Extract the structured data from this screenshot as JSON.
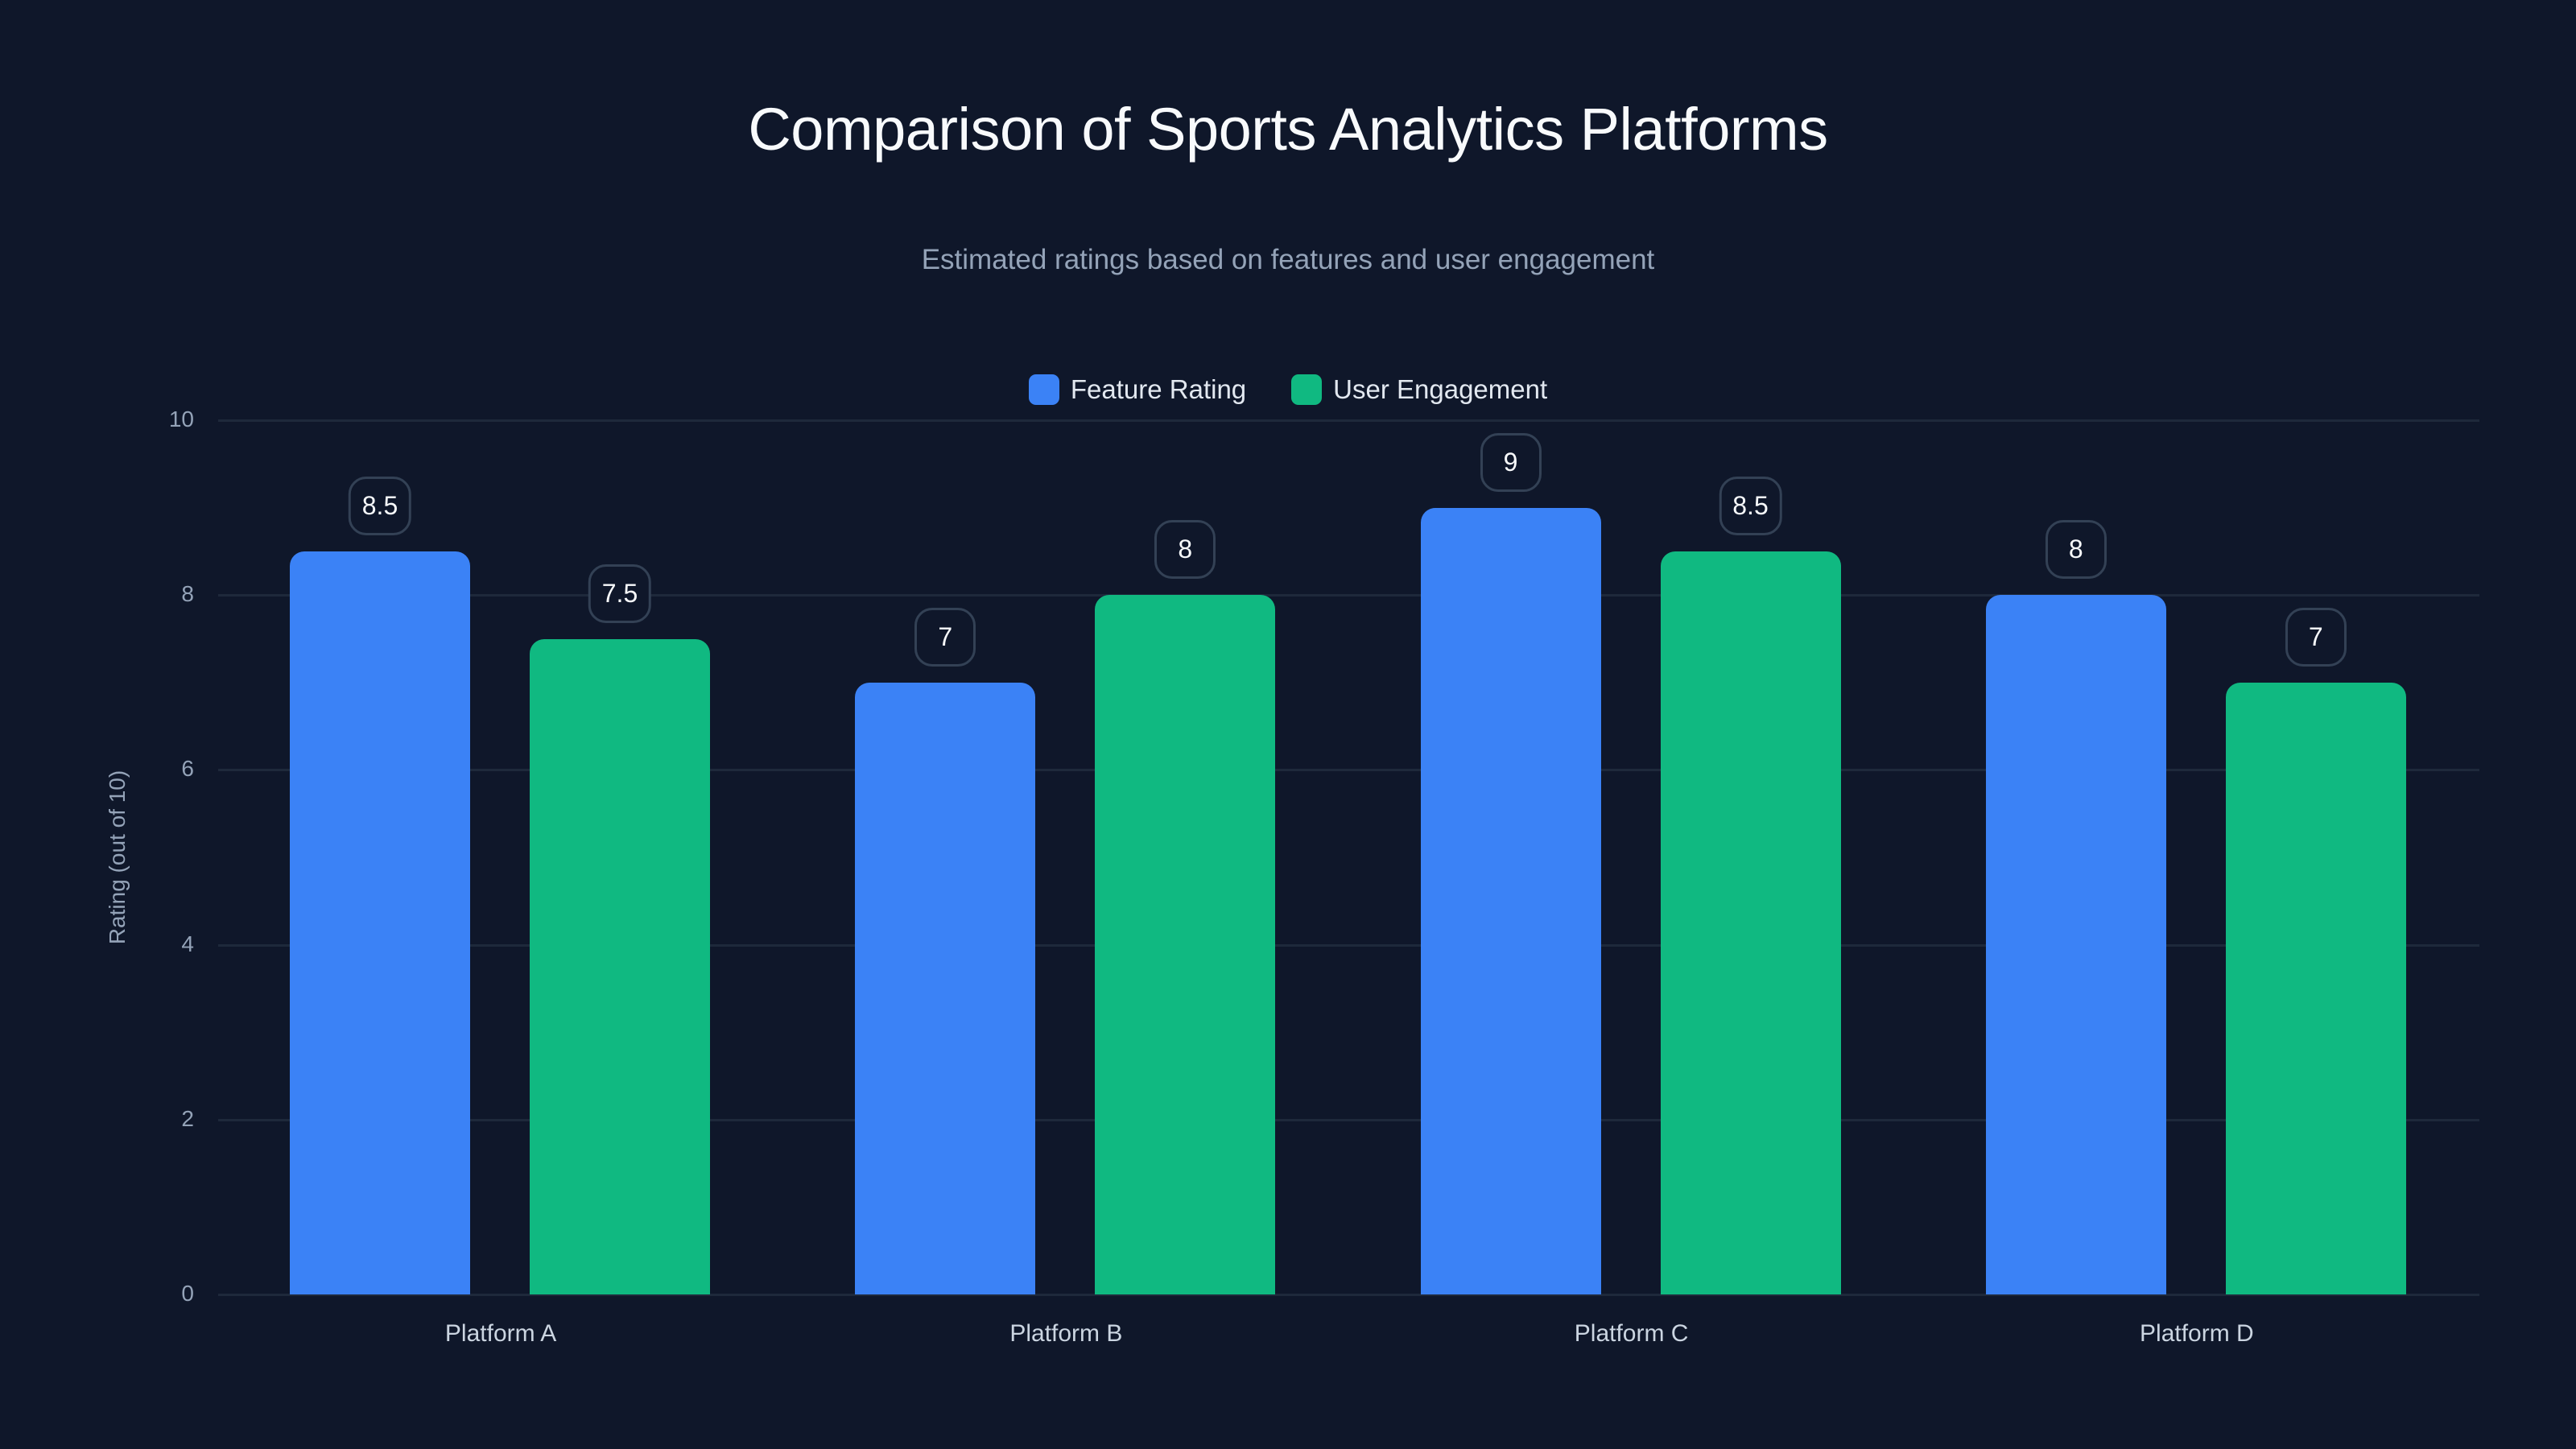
{
  "header": {
    "title": "Comparison of Sports Analytics Platforms",
    "subtitle": "Estimated ratings based on features and user engagement"
  },
  "legend": [
    {
      "label": "Feature Rating",
      "color": "#3b82f6"
    },
    {
      "label": "User Engagement",
      "color": "#10b981"
    }
  ],
  "axes": {
    "ylabel": "Rating (out of 10)",
    "yticks": [
      "0",
      "2",
      "4",
      "6",
      "8",
      "10"
    ],
    "xticks": [
      "Platform A",
      "Platform B",
      "Platform C",
      "Platform D"
    ]
  },
  "chart_data": {
    "type": "bar",
    "title": "Comparison of Sports Analytics Platforms",
    "subtitle": "Estimated ratings based on features and user engagement",
    "categories": [
      "Platform A",
      "Platform B",
      "Platform C",
      "Platform D"
    ],
    "series": [
      {
        "name": "Feature Rating",
        "color": "#3b82f6",
        "values": [
          8.5,
          7,
          9,
          8
        ]
      },
      {
        "name": "User Engagement",
        "color": "#10b981",
        "values": [
          7.5,
          8,
          8.5,
          7
        ]
      }
    ],
    "xlabel": "",
    "ylabel": "Rating (out of 10)",
    "ylim": [
      0,
      10
    ],
    "yticks": [
      0,
      2,
      4,
      6,
      8,
      10
    ],
    "grid": true,
    "legend_position": "top-center",
    "data_labels": true
  },
  "labels": {
    "series0": [
      "8.5",
      "7",
      "9",
      "8"
    ],
    "series1": [
      "7.5",
      "8",
      "8.5",
      "7"
    ]
  }
}
